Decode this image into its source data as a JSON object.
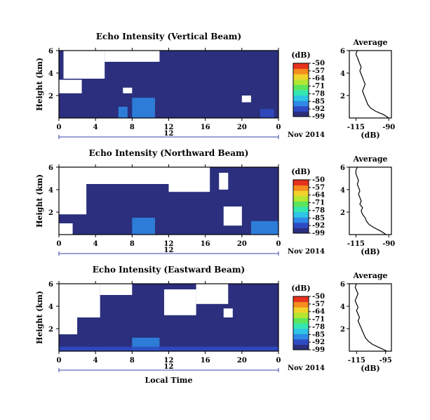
{
  "chart_data": [
    {
      "type": "heatmap",
      "title": "Echo Intensity (Vertical Beam)",
      "ylabel": "Height (km)",
      "yticks": [
        "6",
        "4",
        "2"
      ],
      "ylim": [
        0,
        6
      ],
      "xticks": [
        "0",
        "4",
        "8",
        "12",
        "16",
        "20",
        "0"
      ],
      "xlim": [
        0,
        24
      ],
      "date_tick": "12",
      "date_label": "Nov 2014",
      "colorbar": {
        "unit": "(dB)",
        "ticks": [
          "-50",
          "-57",
          "-64",
          "-71",
          "-78",
          "-85",
          "-92",
          "-99"
        ],
        "range": [
          -99,
          -50
        ],
        "colors": [
          "#2b2f7d",
          "#2f4bc4",
          "#2e8ae6",
          "#2ec4e6",
          "#35e6b0",
          "#5ce65c",
          "#b4e632",
          "#f0d22a",
          "#f58c1e",
          "#e6321e"
        ]
      },
      "missing_color": "#ffffff",
      "background_level_db": -99,
      "enhanced_regions": [
        {
          "hours": [
            6.5,
            7.5
          ],
          "height_km": [
            0.0,
            1.0
          ],
          "db": -88
        },
        {
          "hours": [
            8.0,
            10.5
          ],
          "height_km": [
            0.0,
            1.8
          ],
          "db": -85
        },
        {
          "hours": [
            22.0,
            23.5
          ],
          "height_km": [
            0.0,
            0.8
          ],
          "db": -90
        }
      ],
      "missing_regions": [
        {
          "hours": [
            0.5,
            5.0
          ],
          "height_km": [
            3.5,
            6.0
          ]
        },
        {
          "hours": [
            0.0,
            2.5
          ],
          "height_km": [
            2.2,
            3.4
          ]
        },
        {
          "hours": [
            5.0,
            11.0
          ],
          "height_km": [
            5.0,
            6.0
          ]
        },
        {
          "hours": [
            7.0,
            8.0
          ],
          "height_km": [
            2.2,
            2.7
          ]
        },
        {
          "hours": [
            20.0,
            21.0
          ],
          "height_km": [
            1.4,
            2.0
          ]
        }
      ],
      "average_profile": {
        "title": "Average",
        "xlabel": "(dB)",
        "xticks": [
          "-115",
          "-90"
        ],
        "xlim": [
          -120,
          -88
        ],
        "yticks": [
          "6",
          "4",
          "2"
        ],
        "ylim": [
          0,
          6
        ],
        "height_km": [
          0.0,
          0.3,
          0.6,
          0.9,
          1.2,
          1.5,
          1.8,
          2.1,
          2.4,
          2.7,
          3.0,
          3.3,
          3.6,
          3.9,
          4.2,
          4.5,
          4.8,
          5.1,
          5.4,
          5.7,
          6.0
        ],
        "db": [
          -90,
          -94,
          -100,
          -104,
          -106,
          -107,
          -108,
          -109,
          -110,
          -109,
          -108,
          -109,
          -110,
          -111,
          -112,
          -111,
          -112,
          -113,
          -114,
          -115,
          -114
        ]
      }
    },
    {
      "type": "heatmap",
      "title": "Echo Intensity (Northward Beam)",
      "ylabel": "Height (km)",
      "yticks": [
        "6",
        "4",
        "2"
      ],
      "ylim": [
        0,
        6
      ],
      "xticks": [
        "0",
        "4",
        "8",
        "12",
        "16",
        "20",
        "0"
      ],
      "xlim": [
        0,
        24
      ],
      "date_tick": "12",
      "date_label": "Nov 2014",
      "colorbar": {
        "unit": "(dB)",
        "ticks": [
          "-50",
          "-57",
          "-64",
          "-71",
          "-78",
          "-85",
          "-92",
          "-99"
        ],
        "range": [
          -99,
          -50
        ],
        "colors": [
          "#2b2f7d",
          "#2f4bc4",
          "#2e8ae6",
          "#2ec4e6",
          "#35e6b0",
          "#5ce65c",
          "#b4e632",
          "#f0d22a",
          "#f58c1e",
          "#e6321e"
        ]
      },
      "missing_color": "#ffffff",
      "background_level_db": -99,
      "enhanced_regions": [
        {
          "hours": [
            8.0,
            10.5
          ],
          "height_km": [
            0.0,
            1.5
          ],
          "db": -87
        },
        {
          "hours": [
            21.0,
            24.0
          ],
          "height_km": [
            0.0,
            1.2
          ],
          "db": -88
        }
      ],
      "missing_regions": [
        {
          "hours": [
            0.0,
            12.0
          ],
          "height_km": [
            4.5,
            6.0
          ]
        },
        {
          "hours": [
            0.0,
            3.0
          ],
          "height_km": [
            1.8,
            4.5
          ]
        },
        {
          "hours": [
            12.0,
            16.5
          ],
          "height_km": [
            3.8,
            6.0
          ]
        },
        {
          "hours": [
            17.5,
            18.5
          ],
          "height_km": [
            4.0,
            5.5
          ]
        },
        {
          "hours": [
            18.0,
            20.0
          ],
          "height_km": [
            0.8,
            2.5
          ]
        },
        {
          "hours": [
            0.0,
            1.5
          ],
          "height_km": [
            0.0,
            1.0
          ]
        }
      ],
      "average_profile": {
        "title": "Average",
        "xlabel": "(dB)",
        "xticks": [
          "-115",
          "-90"
        ],
        "xlim": [
          -120,
          -88
        ],
        "yticks": [
          "6",
          "4",
          "2"
        ],
        "ylim": [
          0,
          6
        ],
        "height_km": [
          0.0,
          0.3,
          0.6,
          0.9,
          1.2,
          1.5,
          1.8,
          2.1,
          2.4,
          2.7,
          3.0,
          3.3,
          3.6,
          3.9,
          4.2,
          4.5,
          4.8,
          5.1,
          5.4,
          5.7,
          6.0
        ],
        "db": [
          -92,
          -96,
          -101,
          -105,
          -107,
          -108,
          -110,
          -111,
          -110,
          -112,
          -111,
          -112,
          -113,
          -112,
          -113,
          -114,
          -113,
          -114,
          -115,
          -115,
          -114
        ]
      }
    },
    {
      "type": "heatmap",
      "title": "Echo Intensity (Eastward Beam)",
      "ylabel": "Height (km)",
      "yticks": [
        "6",
        "4",
        "2"
      ],
      "ylim": [
        0,
        6
      ],
      "xticks": [
        "0",
        "4",
        "8",
        "12",
        "16",
        "20",
        "0"
      ],
      "xlim": [
        0,
        24
      ],
      "xlabel": "Local Time",
      "date_tick": "12",
      "date_label": "Nov 2014",
      "colorbar": {
        "unit": "(dB)",
        "ticks": [
          "-50",
          "-57",
          "-64",
          "-71",
          "-78",
          "-85",
          "-92",
          "-99"
        ],
        "range": [
          -99,
          -50
        ],
        "colors": [
          "#2b2f7d",
          "#2f4bc4",
          "#2e8ae6",
          "#2ec4e6",
          "#35e6b0",
          "#5ce65c",
          "#b4e632",
          "#f0d22a",
          "#f58c1e",
          "#e6321e"
        ]
      },
      "missing_color": "#ffffff",
      "background_level_db": -99,
      "enhanced_regions": [
        {
          "hours": [
            8.0,
            11.0
          ],
          "height_km": [
            0.0,
            1.2
          ],
          "db": -86
        },
        {
          "hours": [
            0.0,
            24.0
          ],
          "height_km": [
            0.0,
            0.4
          ],
          "db": -92
        }
      ],
      "missing_regions": [
        {
          "hours": [
            0.0,
            4.5
          ],
          "height_km": [
            3.0,
            6.0
          ]
        },
        {
          "hours": [
            4.5,
            8.0
          ],
          "height_km": [
            5.0,
            6.0
          ]
        },
        {
          "hours": [
            11.5,
            15.0
          ],
          "height_km": [
            3.2,
            5.5
          ]
        },
        {
          "hours": [
            15.0,
            18.5
          ],
          "height_km": [
            4.2,
            6.0
          ]
        },
        {
          "hours": [
            0.0,
            2.0
          ],
          "height_km": [
            1.5,
            3.0
          ]
        },
        {
          "hours": [
            18.0,
            19.0
          ],
          "height_km": [
            3.0,
            3.8
          ]
        }
      ],
      "average_profile": {
        "title": "Average",
        "xlabel": "(dB)",
        "xticks": [
          "-115",
          "-95"
        ],
        "xlim": [
          -120,
          -91
        ],
        "yticks": [
          "6",
          "4",
          "2"
        ],
        "ylim": [
          0,
          6
        ],
        "height_km": [
          0.0,
          0.3,
          0.6,
          0.9,
          1.2,
          1.5,
          1.8,
          2.1,
          2.4,
          2.7,
          3.0,
          3.3,
          3.6,
          3.9,
          4.2,
          4.5,
          4.8,
          5.1,
          5.4,
          5.7,
          6.0
        ],
        "db": [
          -94,
          -99,
          -104,
          -107,
          -109,
          -110,
          -111,
          -112,
          -113,
          -114,
          -113,
          -114,
          -115,
          -114,
          -115,
          -116,
          -115,
          -114,
          -115,
          -116,
          -115
        ]
      }
    }
  ]
}
